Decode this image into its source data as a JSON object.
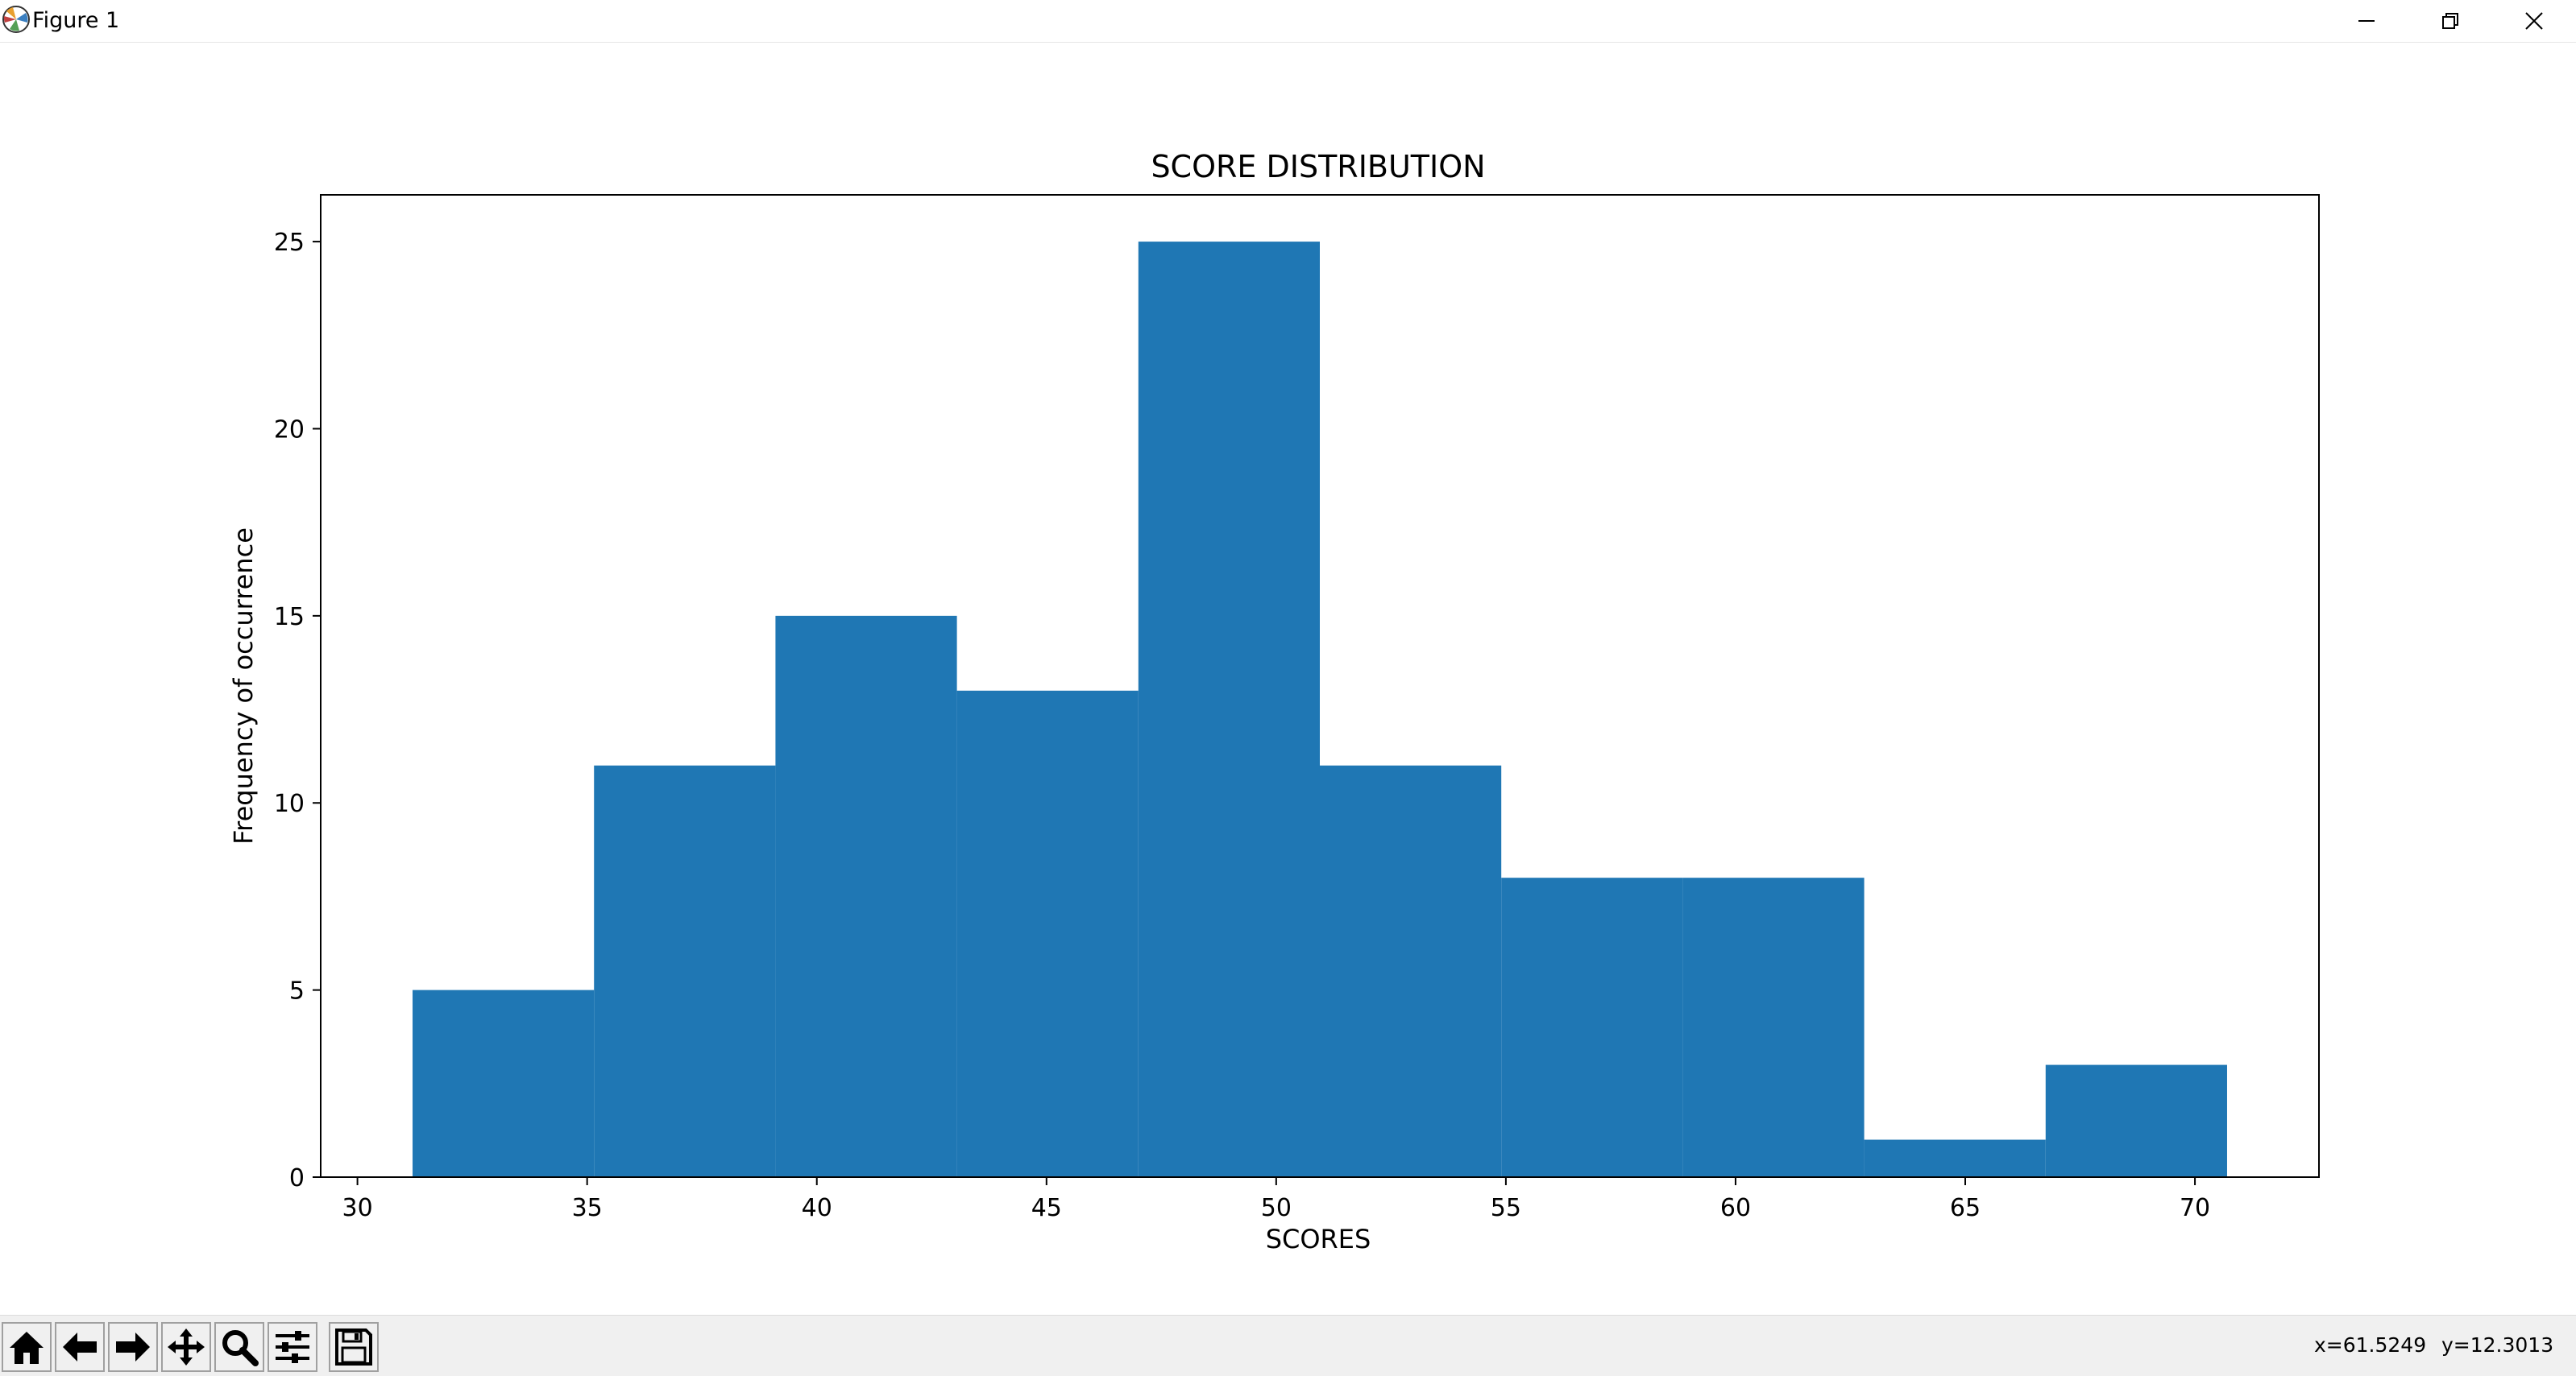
{
  "window": {
    "title": "Figure 1",
    "controls": [
      "minimize-icon",
      "restore-icon",
      "close-icon"
    ]
  },
  "toolbar": {
    "buttons": [
      {
        "name": "home-button",
        "icon": "home-icon"
      },
      {
        "name": "back-button",
        "icon": "arrow-left-icon"
      },
      {
        "name": "forward-button",
        "icon": "arrow-right-icon"
      },
      {
        "name": "pan-button",
        "icon": "move-icon"
      },
      {
        "name": "zoom-button",
        "icon": "magnifier-icon"
      },
      {
        "name": "configure-subplots-button",
        "icon": "sliders-icon"
      },
      {
        "name": "save-button",
        "icon": "floppy-disk-icon"
      }
    ],
    "coord_x": "x=61.5249",
    "coord_y": "y=12.3013"
  },
  "chart_data": {
    "type": "bar",
    "title": "SCORE DISTRIBUTION",
    "xlabel": "SCORES",
    "ylabel": "Frequency of occurrence",
    "bin_edges": [
      31.2,
      35.15,
      39.1,
      43.05,
      47.0,
      50.95,
      54.9,
      58.85,
      62.8,
      66.75,
      70.7
    ],
    "values": [
      5,
      11,
      15,
      13,
      25,
      11,
      8,
      8,
      1,
      3
    ],
    "xlim": [
      29.2,
      72.7
    ],
    "ylim": [
      0,
      26.25
    ],
    "xticks": [
      30,
      35,
      40,
      45,
      50,
      55,
      60,
      65,
      70
    ],
    "yticks": [
      0,
      5,
      10,
      15,
      20,
      25
    ],
    "bar_color": "#1f77b4",
    "grid": false
  }
}
